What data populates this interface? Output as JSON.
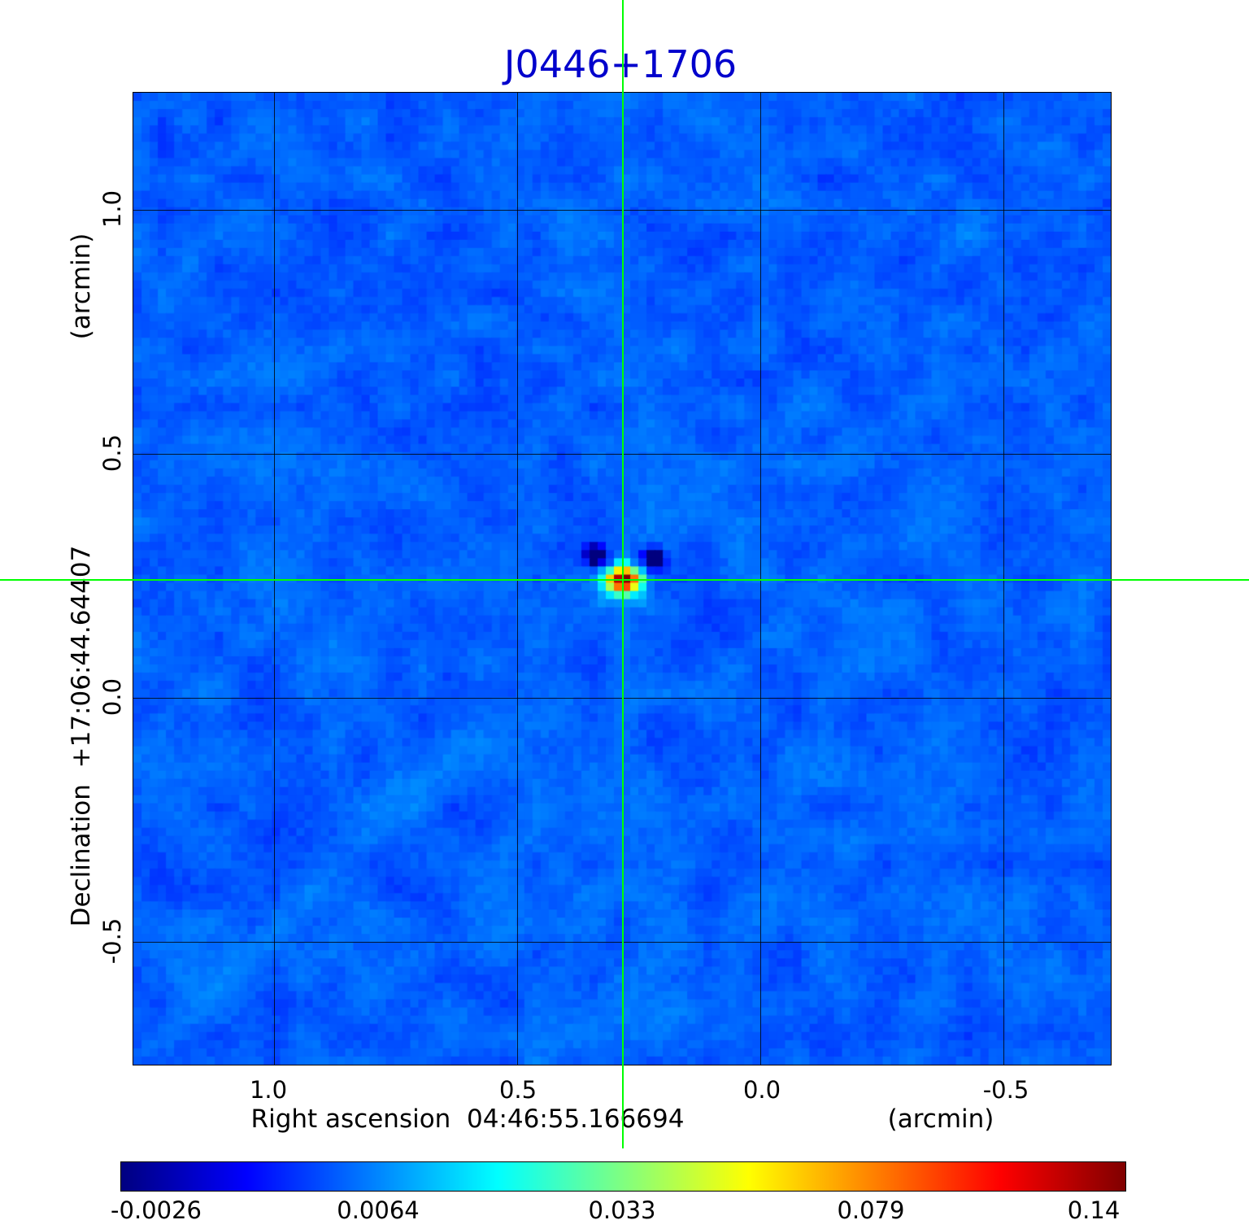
{
  "title": "J0446+1706",
  "title_color": "#0000cc",
  "axes": {
    "y": {
      "label": "Declination  +17:06:44.64407",
      "unit": "(arcmin)",
      "ticks": [
        "1.0",
        "0.5",
        "0.0",
        "-0.5"
      ]
    },
    "x": {
      "label": "Right ascension  04:46:55.166694",
      "unit": "(arcmin)",
      "ticks": [
        "1.0",
        "0.5",
        "0.0",
        "-0.5"
      ]
    }
  },
  "colorbar": {
    "tick_labels": [
      "-0.0026",
      "0.0064",
      "0.033",
      "0.079",
      "0.14"
    ],
    "gradient": [
      "#000080 0%",
      "#0000ff 12.5%",
      "#004dff 20%",
      "#00b3ff 30%",
      "#00ffff 37.5%",
      "#80ff80 50%",
      "#ffff00 62.5%",
      "#ffb300 70%",
      "#ff4d00 80%",
      "#ff0000 87.5%",
      "#800000 100%"
    ]
  },
  "crosshair_color": "#00ff00",
  "chart_data": {
    "type": "heatmap",
    "title": "J0446+1706",
    "xlabel": "Right ascension  04:46:55.166694 (arcmin)",
    "ylabel": "Declination  +17:06:44.64407 (arcmin)",
    "x_range": [
      1.29,
      -0.725
    ],
    "y_range": [
      1.24,
      -0.755
    ],
    "x_ticks": [
      1.0,
      0.5,
      0.0,
      -0.5
    ],
    "y_ticks": [
      1.0,
      0.5,
      0.0,
      -0.5
    ],
    "colormap": "jet",
    "scale": "sqrt",
    "value_range": [
      -0.0026,
      0.14
    ],
    "colorbar_ticks": [
      -0.0026,
      0.0064,
      0.033,
      0.079,
      0.14
    ],
    "background_level": 0.0042,
    "grid": true,
    "source": {
      "name": "J0446+1706",
      "ra": "04:46:55.166694",
      "dec": "+17:06:44.64407",
      "peak_value": 0.14
    },
    "peak": {
      "x_arcmin": 0.28,
      "y_arcmin": 0.24,
      "value": 0.14
    },
    "crosshair": {
      "x_arcmin": 0.28,
      "y_arcmin": 0.24
    }
  }
}
